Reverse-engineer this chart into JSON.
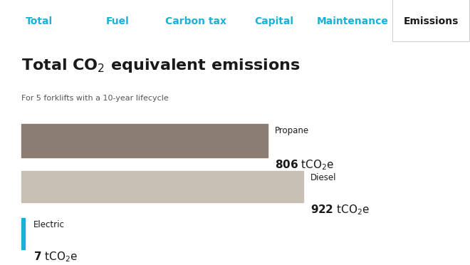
{
  "title_plain": "Total CO",
  "title_rest": " equivalent emissions",
  "subtitle": "For 5 forklifts with a 10-year lifecycle",
  "categories": [
    "Propane",
    "Diesel",
    "Electric"
  ],
  "values": [
    806,
    922,
    7
  ],
  "bar_colors": [
    "#8c7d72",
    "#c8bfb5",
    "#1ab0d8"
  ],
  "value_labels": [
    "806",
    "922",
    "7"
  ],
  "max_value": 1000,
  "bg_color": "#ffffff",
  "tab_bg_color": "#f0f0f0",
  "tab_labels": [
    "Total",
    "Fuel",
    "Carbon tax",
    "Capital",
    "Maintenance",
    "Emissions"
  ],
  "tab_active": "Emissions",
  "tab_color": "#1ab0d8",
  "tab_active_color": "#1a1a1a",
  "tab_border_color": "#cccccc"
}
